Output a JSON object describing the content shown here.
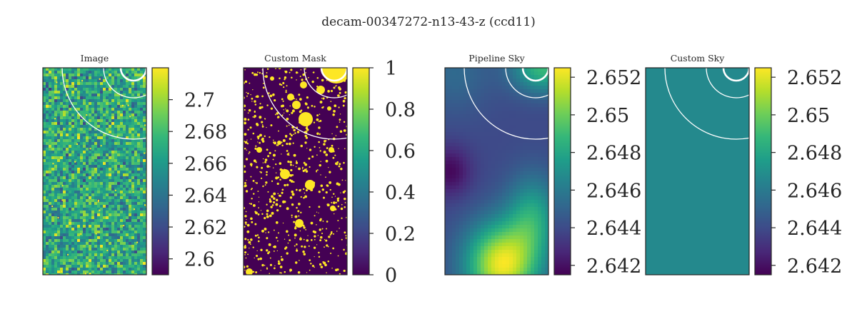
{
  "figure": {
    "title": "decam-00347272-n13-43-z (ccd11)"
  },
  "colormap": {
    "name": "viridis",
    "stops": [
      "#440154",
      "#482878",
      "#3e4a89",
      "#31688e",
      "#26828e",
      "#1f9e89",
      "#35b779",
      "#6ece58",
      "#b5de2b",
      "#fde725"
    ]
  },
  "colors": {
    "frame": "#262626",
    "contour": "#ffffff",
    "mask_background": "#440154",
    "mask_source": "#fde725",
    "custom_sky_fill": "#2a788e"
  },
  "chart_data": [
    {
      "type": "heatmap",
      "title": "Image",
      "content": "noise field with sparse bright sources",
      "colorbar": {
        "vmin": 2.59,
        "vmax": 2.72,
        "ticks": [
          2.6,
          2.62,
          2.64,
          2.66,
          2.68,
          2.7
        ],
        "tick_labels": [
          "2.6",
          "2.62",
          "2.64",
          "2.66",
          "2.68",
          "2.7"
        ]
      },
      "contour_overlay": "concentric circles around bright star at top-right corner",
      "axes_ticks": "hidden"
    },
    {
      "type": "heatmap",
      "title": "Custom Mask",
      "content": "binary mask, 0 background, 1 masked sources",
      "colorbar": {
        "vmin": 0,
        "vmax": 1,
        "ticks": [
          0,
          0.2,
          0.4,
          0.6,
          0.8,
          1
        ],
        "tick_labels": [
          "0",
          "0.2",
          "0.4",
          "0.6",
          "0.8",
          "1"
        ]
      },
      "contour_overlay": "concentric circles around bright star at top-right corner",
      "axes_ticks": "hidden"
    },
    {
      "type": "heatmap",
      "title": "Pipeline Sky",
      "content": "smooth sky background: low on left-middle, high at bottom-center",
      "colorbar": {
        "vmin": 2.6415,
        "vmax": 2.6525,
        "ticks": [
          2.642,
          2.644,
          2.646,
          2.648,
          2.65,
          2.652
        ],
        "tick_labels": [
          "2.642",
          "2.644",
          "2.646",
          "2.648",
          "2.65",
          "2.652"
        ]
      },
      "contour_overlay": "concentric circles around bright star at top-right corner",
      "axes_ticks": "hidden"
    },
    {
      "type": "heatmap",
      "title": "Custom Sky",
      "content": "constant sky level",
      "constant_value": 2.6467,
      "colorbar": {
        "vmin": 2.6415,
        "vmax": 2.6525,
        "ticks": [
          2.642,
          2.644,
          2.646,
          2.648,
          2.65,
          2.652
        ],
        "tick_labels": [
          "2.642",
          "2.644",
          "2.646",
          "2.648",
          "2.65",
          "2.652"
        ]
      },
      "contour_overlay": "concentric circles around bright star at top-right corner",
      "axes_ticks": "hidden"
    }
  ]
}
